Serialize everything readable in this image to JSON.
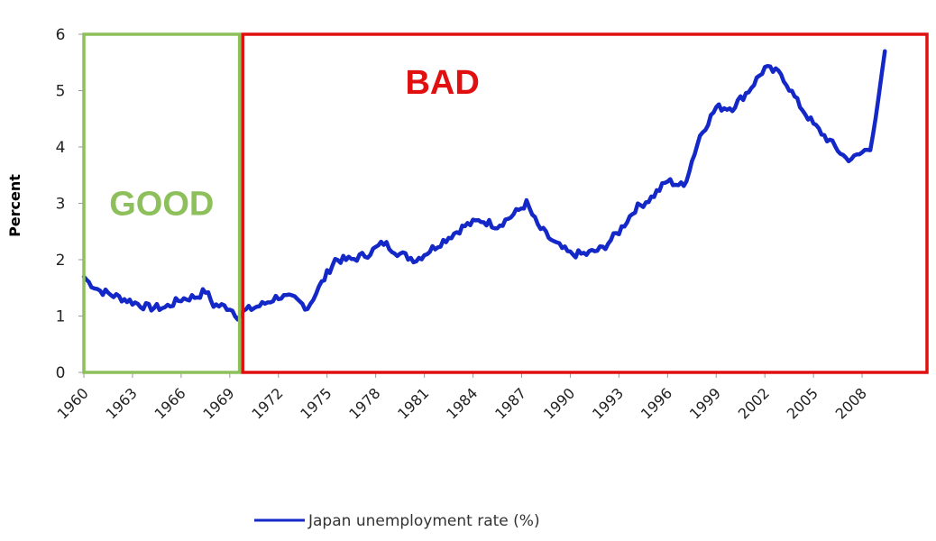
{
  "chart_data": {
    "type": "line",
    "ylabel": "Percent",
    "xlabel": "",
    "ylim": [
      0,
      6
    ],
    "xlim": [
      1960,
      2012
    ],
    "yticks": [
      "0",
      "1",
      "2",
      "3",
      "4",
      "5",
      "6"
    ],
    "xticks": [
      "1960",
      "1963",
      "1966",
      "1969",
      "1972",
      "1975",
      "1978",
      "1981",
      "1984",
      "1987",
      "1990",
      "1993",
      "1996",
      "1999",
      "2002",
      "2005",
      "2008"
    ],
    "grid": false,
    "legend_position": "bottom",
    "series": [
      {
        "name": "Japan unemployment rate (%)",
        "color": "#1428c8",
        "x": [
          1960.0,
          1960.3,
          1961.0,
          1962.0,
          1963.0,
          1964.0,
          1965.0,
          1966.0,
          1967.0,
          1967.5,
          1968.0,
          1969.0,
          1969.5,
          1970.0,
          1971.0,
          1972.0,
          1973.0,
          1973.8,
          1974.5,
          1975.5,
          1976.5,
          1977.5,
          1978.5,
          1979.5,
          1980.5,
          1981.5,
          1982.5,
          1983.5,
          1984.5,
          1985.5,
          1986.5,
          1987.3,
          1988.0,
          1989.0,
          1990.0,
          1991.0,
          1992.0,
          1993.0,
          1994.0,
          1995.0,
          1996.0,
          1997.0,
          1998.0,
          1999.0,
          2000.0,
          2001.0,
          2002.0,
          2003.0,
          2004.0,
          2005.0,
          2006.0,
          2007.0,
          2007.5,
          2008.0,
          2008.5,
          2009.0,
          2009.4
        ],
        "y": [
          1.7,
          1.6,
          1.45,
          1.35,
          1.25,
          1.15,
          1.15,
          1.3,
          1.35,
          1.45,
          1.2,
          1.15,
          1.0,
          1.1,
          1.2,
          1.35,
          1.3,
          1.15,
          1.5,
          2.0,
          2.0,
          2.1,
          2.3,
          2.1,
          2.0,
          2.2,
          2.4,
          2.6,
          2.7,
          2.6,
          2.8,
          3.0,
          2.6,
          2.3,
          2.1,
          2.1,
          2.2,
          2.5,
          2.9,
          3.1,
          3.4,
          3.3,
          4.2,
          4.7,
          4.7,
          5.0,
          5.4,
          5.3,
          4.8,
          4.4,
          4.1,
          3.8,
          3.8,
          3.9,
          4.0,
          4.8,
          5.7
        ]
      }
    ],
    "annotations": [
      {
        "text": "GOOD",
        "color": "#8dc05a",
        "x_range": [
          1960,
          1969.6
        ],
        "y_range": [
          0,
          6
        ]
      },
      {
        "text": "BAD",
        "color": "#e01010",
        "x_range": [
          1969.8,
          2012
        ],
        "y_range": [
          0,
          6
        ]
      }
    ]
  }
}
